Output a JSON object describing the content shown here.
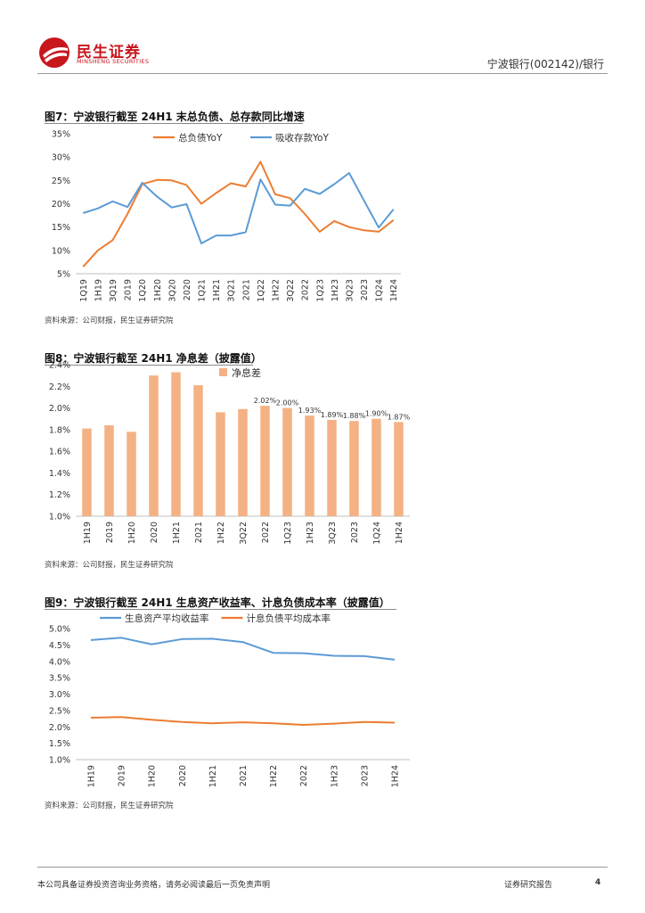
{
  "header": {
    "brand_cn": "民生证券",
    "brand_en": "MINSHENG SECURITIES",
    "right_title": "宁波银行(002142)/银行"
  },
  "footer": {
    "disclaimer": "本公司具备证券投资咨询业务资格，请务必阅读最后一页免责声明",
    "doc_type": "证券研究报告",
    "page_number": "4"
  },
  "figures": [
    {
      "title": "图7：宁波银行截至 24H1 末总负债、总存款同比增速",
      "source": "资料来源：公司财报，民生证券研究院"
    },
    {
      "title": "图8：宁波银行截至 24H1 净息差（披露值）",
      "source": "资料来源：公司财报，民生证券研究院"
    },
    {
      "title": "图9：宁波银行截至 24H1 生息资产收益率、计息负债成本率（披露值）",
      "source": "资料来源：公司财报，民生证券研究院"
    }
  ],
  "colors": {
    "orange": "#ed7d31",
    "blue": "#5b9bd5",
    "bar": "#f4b183",
    "brand_red": "#c8161d"
  },
  "chart_data": [
    {
      "type": "line",
      "title": "",
      "x": [
        "1Q19",
        "1H19",
        "3Q19",
        "2019",
        "1Q20",
        "1H20",
        "3Q20",
        "2020",
        "1Q21",
        "1H21",
        "3Q21",
        "2021",
        "1Q22",
        "1H22",
        "3Q22",
        "2022",
        "1Q23",
        "1H23",
        "3Q23",
        "2023",
        "1Q24",
        "1H24"
      ],
      "series": [
        {
          "name": "总负债YoY",
          "color": "#ed7d31",
          "values": [
            6.5,
            10.0,
            12.2,
            17.8,
            24.2,
            25.1,
            25.0,
            24.0,
            20.0,
            22.3,
            24.4,
            23.7,
            29.0,
            22.0,
            21.2,
            17.8,
            14.0,
            16.3,
            15.0,
            14.3,
            14.0,
            16.5
          ]
        },
        {
          "name": "吸收存款YoY",
          "color": "#5b9bd5",
          "values": [
            18.0,
            19.0,
            20.5,
            19.3,
            24.5,
            21.5,
            19.2,
            19.9,
            11.5,
            13.2,
            13.2,
            13.9,
            25.2,
            19.8,
            19.6,
            23.2,
            22.1,
            24.2,
            26.6,
            20.7,
            14.9,
            18.8
          ]
        }
      ],
      "y_ticks": [
        "35%",
        "30%",
        "25%",
        "20%",
        "15%",
        "10%",
        "5%"
      ],
      "ylim": [
        5,
        35
      ],
      "legend": "top-center",
      "grid": false
    },
    {
      "type": "bar",
      "title": "",
      "categories": [
        "1H19",
        "2019",
        "1H20",
        "2020",
        "1H21",
        "2021",
        "1H22",
        "3Q22",
        "2022",
        "1Q23",
        "1H23",
        "3Q23",
        "2023",
        "1Q24",
        "1H24"
      ],
      "series": [
        {
          "name": "净息差",
          "color": "#f4b183",
          "values": [
            1.81,
            1.84,
            1.78,
            2.3,
            2.33,
            2.21,
            1.96,
            1.99,
            2.02,
            2.0,
            1.93,
            1.89,
            1.88,
            1.9,
            1.87
          ]
        }
      ],
      "data_labels": [
        "",
        "",
        "",
        "",
        "",
        "",
        "",
        "",
        "2.02%",
        "2.00%",
        "1.93%",
        "1.89%",
        "1.88%",
        "1.90%",
        "1.87%"
      ],
      "y_ticks": [
        "2.4%",
        "2.2%",
        "2.0%",
        "1.8%",
        "1.6%",
        "1.4%",
        "1.2%",
        "1.0%"
      ],
      "ylim": [
        1.0,
        2.4
      ],
      "legend": "top-center",
      "grid": false
    },
    {
      "type": "line",
      "title": "",
      "x": [
        "1H19",
        "2019",
        "1H20",
        "2020",
        "1H21",
        "2021",
        "1H22",
        "2022",
        "1H23",
        "2023",
        "1H24"
      ],
      "series": [
        {
          "name": "生息资产平均收益率",
          "color": "#5b9bd5",
          "values": [
            4.65,
            4.72,
            4.52,
            4.68,
            4.69,
            4.59,
            4.26,
            4.25,
            4.17,
            4.16,
            4.05
          ]
        },
        {
          "name": "计息负债平均成本率",
          "color": "#ed7d31",
          "values": [
            2.28,
            2.3,
            2.22,
            2.15,
            2.11,
            2.14,
            2.11,
            2.06,
            2.1,
            2.15,
            2.13
          ]
        }
      ],
      "y_ticks": [
        "5.0%",
        "4.5%",
        "4.0%",
        "3.5%",
        "3.0%",
        "2.5%",
        "2.0%",
        "1.5%",
        "1.0%"
      ],
      "ylim": [
        1.0,
        5.0
      ],
      "legend": "top-left",
      "grid": false
    }
  ]
}
